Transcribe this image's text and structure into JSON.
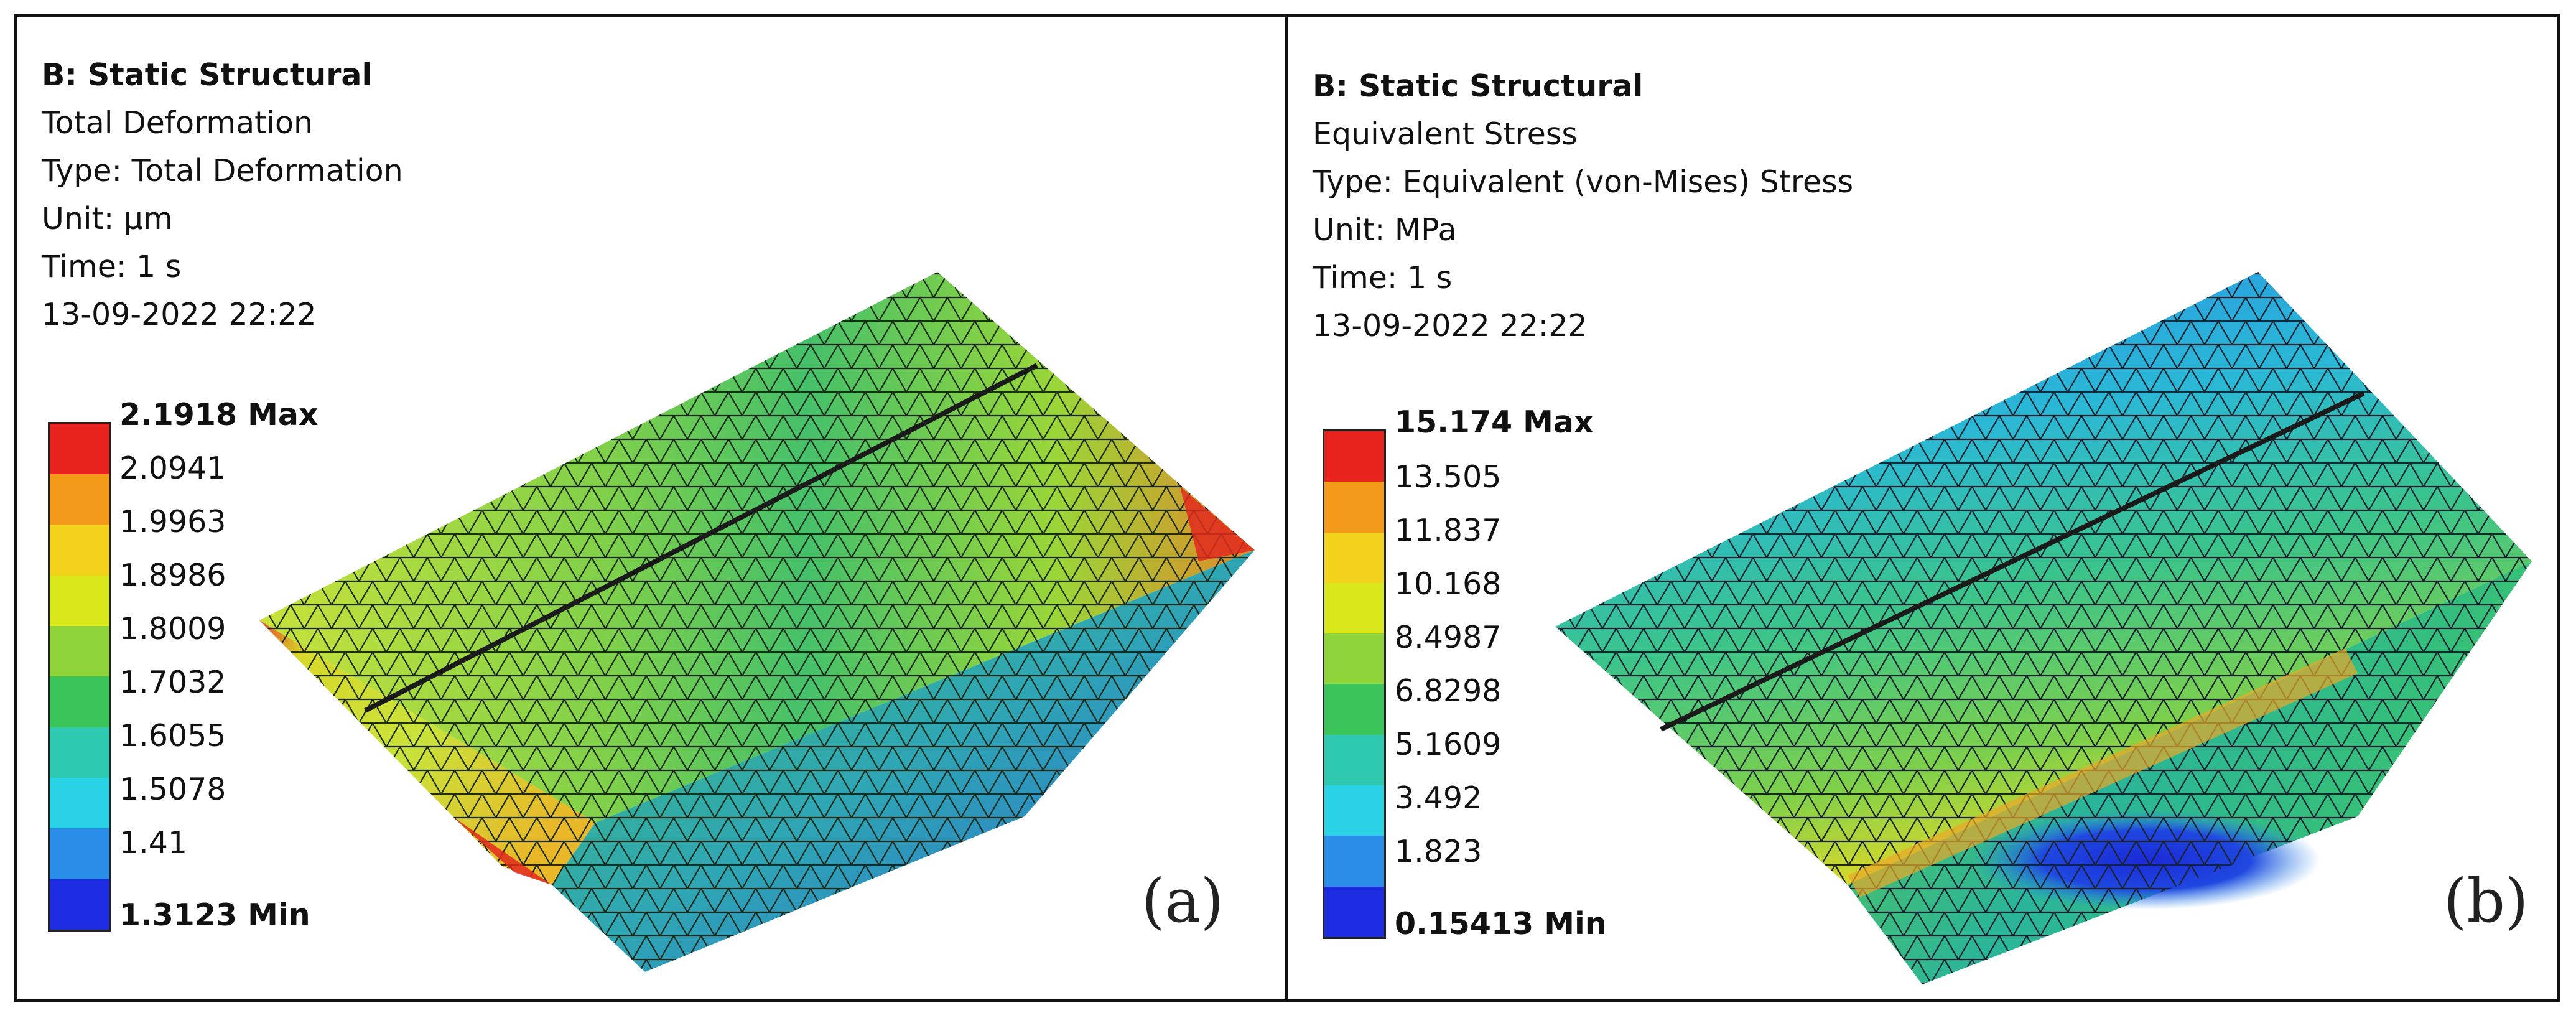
{
  "panels": [
    {
      "system": "B: Static Structural",
      "result": "Total Deformation",
      "type": "Type: Total Deformation",
      "unit": "Unit: µm",
      "time": "Time: 1 s",
      "date": "13-09-2022 22:22",
      "legend": {
        "max": "2.1918 Max",
        "levels": [
          "2.0941",
          "1.9963",
          "1.8986",
          "1.8009",
          "1.7032",
          "1.6055",
          "1.5078",
          "1.41"
        ],
        "min": "1.3123 Min",
        "colors": [
          "#e8231e",
          "#f39a1b",
          "#f2d21b",
          "#d8e81a",
          "#8fd43a",
          "#3bc45a",
          "#2ec9b0",
          "#2ad2e6",
          "#2a8ee8",
          "#1d2ce0"
        ]
      },
      "tag": "(a)"
    },
    {
      "system": "B: Static Structural",
      "result": "Equivalent Stress",
      "type": "Type: Equivalent (von-Mises) Stress",
      "unit": "Unit: MPa",
      "time": "Time: 1 s",
      "date": "13-09-2022 22:22",
      "legend": {
        "max": "15.174 Max",
        "levels": [
          "13.505",
          "11.837",
          "10.168",
          "8.4987",
          "6.8298",
          "5.1609",
          "3.492",
          "1.823"
        ],
        "min": "0.15413 Min",
        "colors": [
          "#e8231e",
          "#f39a1b",
          "#f2d21b",
          "#d8e81a",
          "#8fd43a",
          "#3bc45a",
          "#2ec9b0",
          "#2ad2e6",
          "#2a8ee8",
          "#1d2ce0"
        ]
      },
      "tag": "(b)"
    }
  ]
}
